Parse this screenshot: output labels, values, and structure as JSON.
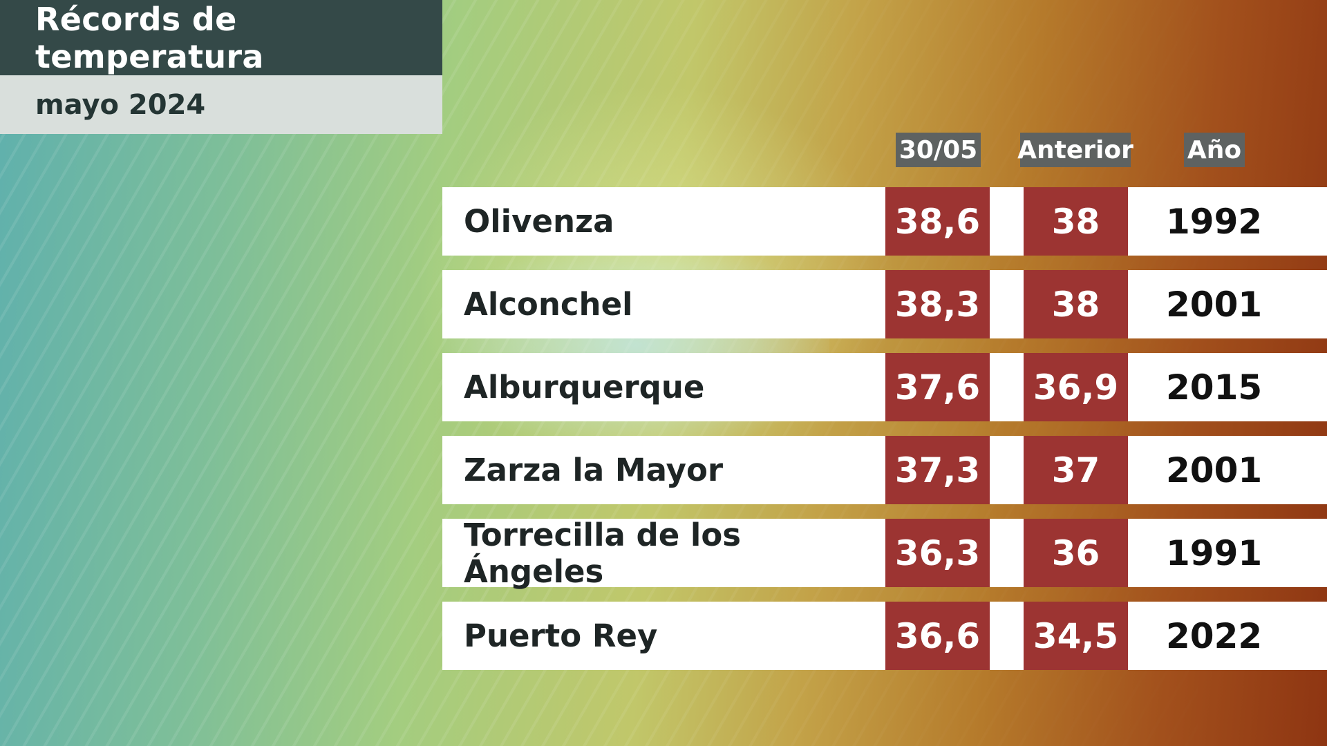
{
  "header": {
    "title": "Récords de temperatura",
    "subtitle": "mayo 2024"
  },
  "columns": {
    "current": "30/05",
    "previous": "Anterior",
    "year": "Año"
  },
  "rows": [
    {
      "station": "Olivenza",
      "current": "38,6",
      "previous": "38",
      "year": "1992"
    },
    {
      "station": "Alconchel",
      "current": "38,3",
      "previous": "38",
      "year": "2001"
    },
    {
      "station": "Alburquerque",
      "current": "37,6",
      "previous": "36,9",
      "year": "2015"
    },
    {
      "station": "Zarza la Mayor",
      "current": "37,3",
      "previous": "37",
      "year": "2001"
    },
    {
      "station": "Torrecilla de los Ángeles",
      "current": "36,3",
      "previous": "36",
      "year": "1991"
    },
    {
      "station": "Puerto Rey",
      "current": "36,6",
      "previous": "34,5",
      "year": "2022"
    }
  ],
  "colors": {
    "title_bg": "#344948",
    "subtitle_bg": "#d9dfdc",
    "header_chip": "#5e6261",
    "value_cell": "#9c3432"
  }
}
